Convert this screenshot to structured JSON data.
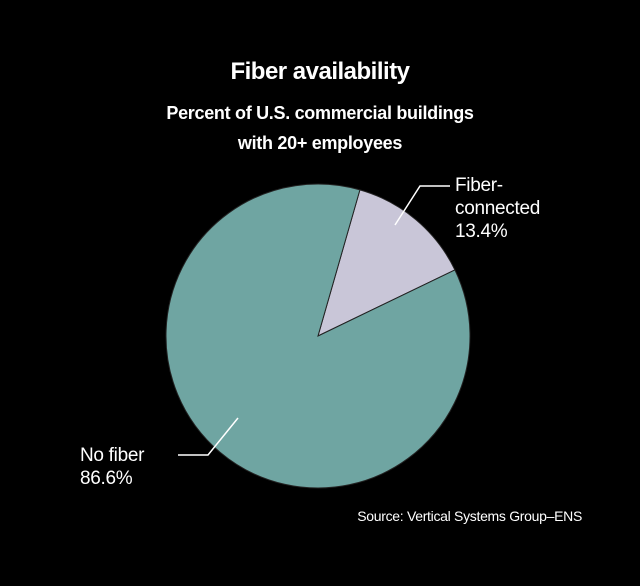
{
  "chart_data": {
    "type": "pie",
    "title": "Fiber availability",
    "subtitle": "Percent of U.S. commercial buildings\nwith 20+ employees",
    "categories": [
      "Fiber-\nconnected",
      "No fiber"
    ],
    "values": [
      13.4,
      86.6
    ],
    "value_labels": [
      "13.4%",
      "86.6%"
    ],
    "colors": [
      "#c9c6d8",
      "#6fa5a2"
    ],
    "source": "Source: Vertical Systems Group–ENS"
  }
}
